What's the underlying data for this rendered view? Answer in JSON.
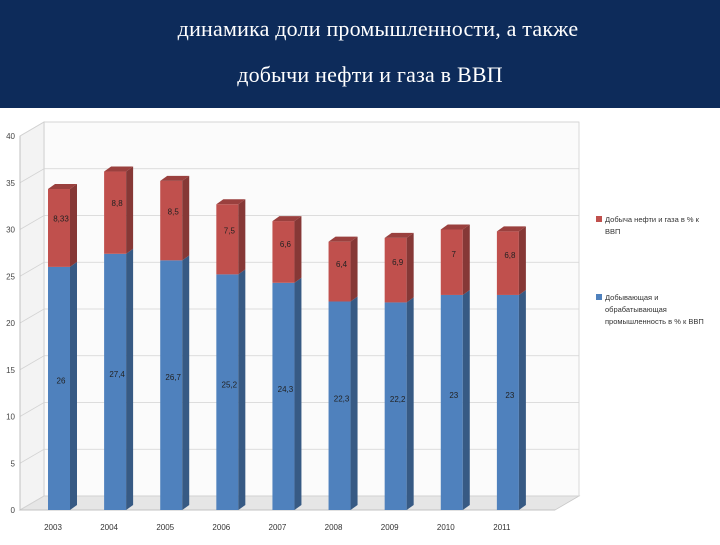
{
  "header": {
    "title_line1": "динамика доли промышленности, а также",
    "title_line2": "добычи нефти и газа в ВВП"
  },
  "chart_data": {
    "type": "bar",
    "stacked": true,
    "categories": [
      "2003",
      "2004",
      "2005",
      "2006",
      "2007",
      "2008",
      "2009",
      "2010",
      "2011"
    ],
    "series": [
      {
        "name": "Добывающая и обрабатывающая промышленность в % к ВВП",
        "color": "#4f81bd",
        "values": [
          26,
          27.4,
          26.7,
          25.2,
          24.3,
          22.3,
          22.2,
          23,
          23
        ],
        "labels": [
          "26",
          "27,4",
          "26,7",
          "25,2",
          "24,3",
          "22,3",
          "22,2",
          "23",
          "23"
        ]
      },
      {
        "name": "Добыча нефти и газа в % к ВВП",
        "color": "#c0504d",
        "values": [
          8.33,
          8.8,
          8.5,
          7.5,
          6.6,
          6.4,
          6.9,
          7,
          6.8
        ],
        "labels": [
          "8,33",
          "8,8",
          "8,5",
          "7,5",
          "6,6",
          "6,4",
          "6,9",
          "7",
          "6,8"
        ]
      }
    ],
    "yticks": [
      "0",
      "5",
      "10",
      "15",
      "20",
      "25",
      "30",
      "35",
      "40"
    ],
    "ylim": [
      0,
      40
    ],
    "grid": true,
    "legend": "right"
  }
}
